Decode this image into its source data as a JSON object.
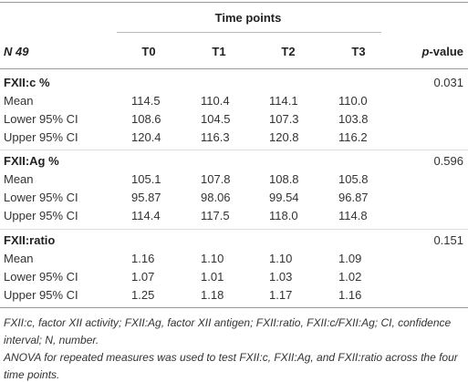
{
  "header": {
    "group_label": "Time points",
    "row_label": "N 49",
    "columns": [
      "T0",
      "T1",
      "T2",
      "T3"
    ],
    "p_label_italic": "p",
    "p_label_rest": "-value"
  },
  "sections": [
    {
      "title": "FXII:c %",
      "p_value": "0.031",
      "rows": [
        {
          "label": "Mean",
          "values": [
            "114.5",
            "110.4",
            "114.1",
            "110.0"
          ]
        },
        {
          "label": "Lower 95% CI",
          "values": [
            "108.6",
            "104.5",
            "107.3",
            "103.8"
          ]
        },
        {
          "label": "Upper 95% CI",
          "values": [
            "120.4",
            "116.3",
            "120.8",
            "116.2"
          ]
        }
      ]
    },
    {
      "title": "FXII:Ag %",
      "p_value": "0.596",
      "rows": [
        {
          "label": "Mean",
          "values": [
            "105.1",
            "107.8",
            "108.8",
            "105.8"
          ]
        },
        {
          "label": "Lower 95% CI",
          "values": [
            "95.87",
            "98.06",
            "99.54",
            "96.87"
          ]
        },
        {
          "label": "Upper 95% CI",
          "values": [
            "114.4",
            "117.5",
            "118.0",
            "114.8"
          ]
        }
      ]
    },
    {
      "title": "FXII:ratio",
      "p_value": "0.151",
      "rows": [
        {
          "label": "Mean",
          "values": [
            "1.16",
            "1.10",
            "1.10",
            "1.09"
          ]
        },
        {
          "label": "Lower 95% CI",
          "values": [
            "1.07",
            "1.01",
            "1.03",
            "1.02"
          ]
        },
        {
          "label": "Upper 95% CI",
          "values": [
            "1.25",
            "1.18",
            "1.17",
            "1.16"
          ]
        }
      ]
    }
  ],
  "footnotes": [
    "FXII:c, factor XII activity; FXII:Ag, factor XII antigen; FXII:ratio, FXII:c/FXII:Ag; CI, confidence interval; N, number.",
    "ANOVA for repeated measures was used to test FXII:c, FXII:Ag, and FXII:ratio across the four time points."
  ]
}
